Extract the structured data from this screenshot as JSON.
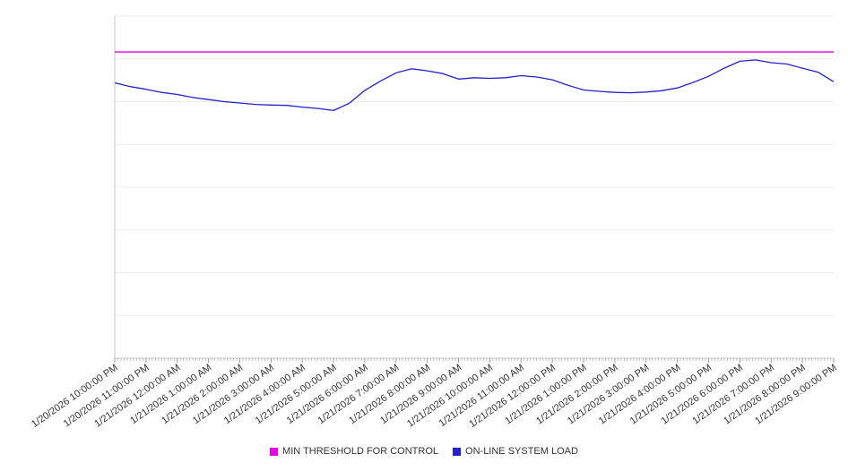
{
  "chart_data": {
    "type": "line",
    "title": "",
    "xlabel": "",
    "ylabel": "",
    "ylim": [
      0,
      100
    ],
    "grid_divisions": 8,
    "grid": true,
    "legend_position": "bottom-center",
    "x_labels": [
      "1/20/2026 10:00:00 PM",
      "1/20/2026 11:00:00 PM",
      "1/21/2026 12:00:00 AM",
      "1/21/2026 1:00:00 AM",
      "1/21/2026 2:00:00 AM",
      "1/21/2026 3:00:00 AM",
      "1/21/2026 4:00:00 AM",
      "1/21/2026 5:00:00 AM",
      "1/21/2026 6:00:00 AM",
      "1/21/2026 7:00:00 AM",
      "1/21/2026 8:00:00 AM",
      "1/21/2026 9:00:00 AM",
      "1/21/2026 10:00:00 AM",
      "1/21/2026 11:00:00 AM",
      "1/21/2026 12:00:00 PM",
      "1/21/2026 1:00:00 PM",
      "1/21/2026 2:00:00 PM",
      "1/21/2026 3:00:00 PM",
      "1/21/2026 4:00:00 PM",
      "1/21/2026 5:00:00 PM",
      "1/21/2026 6:00:00 PM",
      "1/21/2026 7:00:00 PM",
      "1/21/2026 8:00:00 PM",
      "1/21/2026 9:00:00 PM"
    ],
    "series": [
      {
        "name": "MIN THRESHOLD FOR CONTROL",
        "type": "threshold",
        "color": "#e800e8",
        "value": 89.5
      },
      {
        "name": "ON-LINE SYSTEM LOAD",
        "type": "line",
        "color": "#2222cc",
        "points_per_hour": 2,
        "values": [
          80.5,
          79.4,
          78.6,
          77.7,
          77.1,
          76.2,
          75.6,
          75.0,
          74.6,
          74.2,
          74.0,
          73.9,
          73.4,
          73.0,
          72.4,
          74.5,
          78.3,
          81.0,
          83.4,
          84.6,
          84.0,
          83.2,
          81.6,
          82.0,
          81.8,
          82.0,
          82.6,
          82.2,
          81.4,
          79.8,
          78.4,
          78.0,
          77.7,
          77.6,
          77.8,
          78.2,
          79.0,
          80.6,
          82.4,
          84.8,
          86.8,
          87.2,
          86.4,
          86.0,
          84.8,
          83.6,
          80.8
        ]
      }
    ]
  },
  "legend": {
    "items": [
      {
        "label": "MIN THRESHOLD FOR CONTROL",
        "color": "#e800e8"
      },
      {
        "label": "ON-LINE SYSTEM LOAD",
        "color": "#2222cc"
      }
    ]
  }
}
